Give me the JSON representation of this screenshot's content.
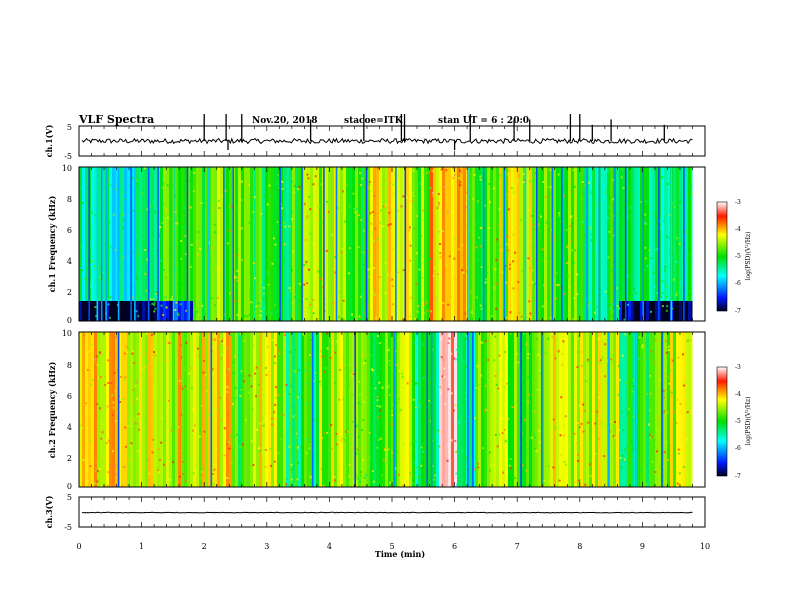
{
  "header": {
    "title": "VLF Spectra",
    "date": "Nov.20, 2018",
    "station": "stacoe=ITK",
    "start": "stan  UT =   6 : 20:0"
  },
  "colorbar_label": "log(PSD)(V²/Hz)",
  "chart_data": [
    {
      "type": "line",
      "name": "ch.1 waveform",
      "ylabel": "ch.1(V)",
      "ylim": [
        -5,
        5
      ],
      "yticks": [
        "5",
        "-5"
      ],
      "xlim": [
        0,
        10
      ],
      "baseline": 0,
      "noise_amplitude": 0.8,
      "spikes": [
        {
          "x": 2.0,
          "y": 5
        },
        {
          "x": 2.35,
          "y": 5
        },
        {
          "x": 2.38,
          "y": -3
        },
        {
          "x": 2.6,
          "y": 5
        },
        {
          "x": 3.7,
          "y": 4
        },
        {
          "x": 4.55,
          "y": 5
        },
        {
          "x": 5.15,
          "y": 5
        },
        {
          "x": 5.2,
          "y": 5
        },
        {
          "x": 6.0,
          "y": -3
        },
        {
          "x": 6.25,
          "y": 5
        },
        {
          "x": 6.95,
          "y": 4
        },
        {
          "x": 7.2,
          "y": 4
        },
        {
          "x": 7.85,
          "y": 5
        },
        {
          "x": 8.0,
          "y": 5
        },
        {
          "x": 8.2,
          "y": 3
        },
        {
          "x": 8.5,
          "y": 4
        },
        {
          "x": 9.35,
          "y": 3
        }
      ]
    },
    {
      "type": "heatmap",
      "name": "ch.1 spectrogram",
      "ylabel": "ch.1 Frequency (kHz)",
      "ylim": [
        0,
        10
      ],
      "yticks": [
        "0",
        "2",
        "4",
        "6",
        "8",
        "10"
      ],
      "xlim": [
        0,
        9.8
      ],
      "colorbar": {
        "range": [
          -7,
          -3
        ],
        "ticks": [
          "-3",
          "-4",
          "-5",
          "-6",
          "-7"
        ]
      },
      "segments": [
        {
          "x0": 0.0,
          "x1": 1.0,
          "level": -5.5
        },
        {
          "x0": 1.0,
          "x1": 2.0,
          "level": -5.0
        },
        {
          "x0": 2.0,
          "x1": 2.6,
          "level": -4.7
        },
        {
          "x0": 2.6,
          "x1": 3.5,
          "level": -5.0
        },
        {
          "x0": 3.5,
          "x1": 4.3,
          "level": -4.5
        },
        {
          "x0": 4.3,
          "x1": 4.6,
          "level": -4.9
        },
        {
          "x0": 4.6,
          "x1": 5.3,
          "level": -4.3
        },
        {
          "x0": 5.3,
          "x1": 5.6,
          "level": -4.7
        },
        {
          "x0": 5.6,
          "x1": 6.2,
          "level": -4.1
        },
        {
          "x0": 6.2,
          "x1": 6.6,
          "level": -4.9
        },
        {
          "x0": 6.6,
          "x1": 7.2,
          "level": -4.4
        },
        {
          "x0": 7.2,
          "x1": 8.0,
          "level": -4.8
        },
        {
          "x0": 8.0,
          "x1": 8.9,
          "level": -5.2
        },
        {
          "x0": 8.9,
          "x1": 9.8,
          "level": -5.4
        }
      ],
      "dark_lines": [
        0.15,
        0.28,
        0.35,
        0.42,
        0.62,
        0.82,
        0.88,
        1.1,
        1.25,
        1.5,
        1.72,
        2.05,
        2.3,
        2.45,
        3.2,
        3.55,
        3.9,
        4.1,
        4.58,
        5.05,
        5.2,
        6.2,
        6.45,
        6.78,
        7.12,
        7.3,
        7.55,
        7.7,
        8.1,
        8.3,
        8.55,
        8.72,
        9.0,
        9.25,
        9.45,
        9.65
      ]
    },
    {
      "type": "heatmap",
      "name": "ch.2 spectrogram",
      "ylabel": "ch.2 Frequency (kHz)",
      "ylim": [
        0,
        10
      ],
      "yticks": [
        "0",
        "2",
        "4",
        "6",
        "8",
        "10"
      ],
      "xlim": [
        0,
        9.8
      ],
      "colorbar": {
        "range": [
          -7,
          -3
        ],
        "ticks": [
          "-3",
          "-4",
          "-5",
          "-6",
          "-7"
        ]
      },
      "segments": [
        {
          "x0": 0.0,
          "x1": 1.3,
          "level": -4.2
        },
        {
          "x0": 1.3,
          "x1": 2.4,
          "level": -4.3
        },
        {
          "x0": 2.4,
          "x1": 2.6,
          "level": -5.0
        },
        {
          "x0": 2.6,
          "x1": 3.3,
          "level": -4.4
        },
        {
          "x0": 3.3,
          "x1": 3.8,
          "level": -5.1
        },
        {
          "x0": 3.8,
          "x1": 4.4,
          "level": -4.5
        },
        {
          "x0": 4.4,
          "x1": 4.75,
          "level": -4.9
        },
        {
          "x0": 4.75,
          "x1": 5.3,
          "level": -4.6
        },
        {
          "x0": 5.3,
          "x1": 5.75,
          "level": -5.2
        },
        {
          "x0": 5.75,
          "x1": 6.0,
          "level": -3.2
        },
        {
          "x0": 6.0,
          "x1": 6.3,
          "level": -5.4
        },
        {
          "x0": 6.3,
          "x1": 7.0,
          "level": -4.6
        },
        {
          "x0": 7.0,
          "x1": 7.5,
          "level": -4.9
        },
        {
          "x0": 7.5,
          "x1": 8.6,
          "level": -4.3
        },
        {
          "x0": 8.6,
          "x1": 9.1,
          "level": -5.1
        },
        {
          "x0": 9.1,
          "x1": 9.8,
          "level": -4.5
        }
      ],
      "dark_lines": [
        0.62,
        2.1,
        3.72,
        4.4,
        5.02,
        5.55,
        5.62,
        6.2,
        6.28,
        7.05,
        7.38,
        8.45,
        8.88,
        9.3
      ]
    },
    {
      "type": "line",
      "name": "ch.3 waveform",
      "ylabel": "ch.3(V)",
      "ylim": [
        -5,
        5
      ],
      "yticks": [
        "5",
        "-5"
      ],
      "xlim": [
        0,
        10
      ],
      "baseline": -0.2,
      "noise_amplitude": 0.1,
      "spikes": []
    }
  ],
  "time_axis": {
    "label": "Time  (min)",
    "ticks": [
      "0",
      "1",
      "2",
      "3",
      "4",
      "5",
      "6",
      "7",
      "8",
      "9",
      "10"
    ]
  }
}
